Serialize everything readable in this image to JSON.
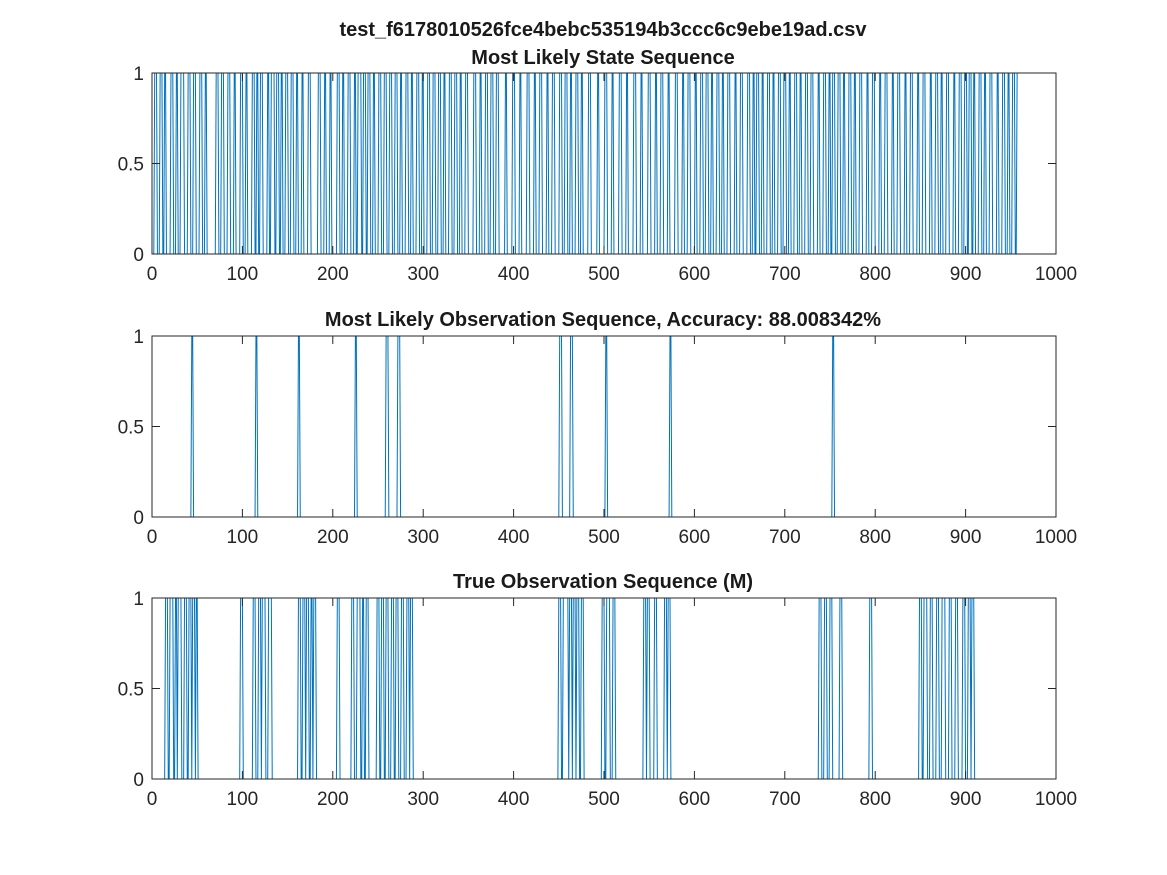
{
  "figure": {
    "suptitle": "test_f6178010526fce4bebc535194b3ccc6c9ebe19ad.csv"
  },
  "colors": {
    "series": "#0072BD",
    "axes": "#262626",
    "background": "#ffffff"
  },
  "chart_data": [
    {
      "type": "line",
      "title": "Most Likely State Sequence",
      "xlabel": "",
      "ylabel": "",
      "xlim": [
        0,
        1000
      ],
      "ylim": [
        0,
        1
      ],
      "xticks": [
        0,
        100,
        200,
        300,
        400,
        500,
        600,
        700,
        800,
        900,
        1000
      ],
      "yticks": [
        0,
        0.5,
        1
      ],
      "xtick_labels": [
        "0",
        "100",
        "200",
        "300",
        "400",
        "500",
        "600",
        "700",
        "800",
        "900",
        "1000"
      ],
      "ytick_labels": [
        "0",
        "0.5",
        "1"
      ],
      "grid": false,
      "series_length": 959,
      "series": [
        {
          "values_encoding": "binary step signal; intervals where value = 1",
          "ones_intervals": [
            [
              2,
              4
            ],
            [
              8,
              10
            ],
            [
              13,
              14
            ],
            [
              20,
              22
            ],
            [
              26,
              27
            ],
            [
              31,
              34
            ],
            [
              39,
              41
            ],
            [
              45,
              47
            ],
            [
              52,
              54
            ],
            [
              58,
              59
            ],
            [
              70,
              72
            ],
            [
              76,
              78
            ],
            [
              83,
              85
            ],
            [
              90,
              91
            ],
            [
              97,
              99
            ],
            [
              103,
              104
            ],
            [
              110,
              112
            ],
            [
              115,
              116
            ],
            [
              119,
              121
            ],
            [
              127,
              128
            ],
            [
              131,
              134
            ],
            [
              137,
              139
            ],
            [
              142,
              143
            ],
            [
              147,
              149
            ],
            [
              153,
              155
            ],
            [
              159,
              160
            ],
            [
              165,
              166
            ],
            [
              172,
              174
            ],
            [
              183,
              185
            ],
            [
              190,
              191
            ],
            [
              196,
              197
            ],
            [
              204,
              206
            ],
            [
              210,
              211
            ],
            [
              216,
              218
            ],
            [
              223,
              224
            ],
            [
              227,
              230
            ],
            [
              233,
              235
            ],
            [
              238,
              240
            ],
            [
              244,
              245
            ],
            [
              250,
              252
            ],
            [
              256,
              258
            ],
            [
              262,
              264
            ],
            [
              268,
              270
            ],
            [
              274,
              275
            ],
            [
              280,
              282
            ],
            [
              286,
              287
            ],
            [
              292,
              294
            ],
            [
              298,
              299
            ],
            [
              304,
              306
            ],
            [
              310,
              312
            ],
            [
              316,
              318
            ],
            [
              322,
              323
            ],
            [
              328,
              330
            ],
            [
              334,
              336
            ],
            [
              340,
              341
            ],
            [
              346,
              348
            ],
            [
              355,
              357
            ],
            [
              362,
              363
            ],
            [
              368,
              370
            ],
            [
              374,
              376
            ],
            [
              380,
              382
            ],
            [
              390,
              391
            ],
            [
              398,
              400
            ],
            [
              406,
              407
            ],
            [
              414,
              416
            ],
            [
              422,
              423
            ],
            [
              428,
              430
            ],
            [
              436,
              437
            ],
            [
              442,
              444
            ],
            [
              450,
              452
            ],
            [
              456,
              458
            ],
            [
              462,
              463
            ],
            [
              468,
              470
            ],
            [
              474,
              475
            ],
            [
              482,
              484
            ],
            [
              492,
              493
            ],
            [
              500,
              502
            ],
            [
              508,
              509
            ],
            [
              516,
              518
            ],
            [
              524,
              525
            ],
            [
              532,
              534
            ],
            [
              540,
              541
            ],
            [
              548,
              550
            ],
            [
              556,
              557
            ],
            [
              562,
              564
            ],
            [
              570,
              571
            ],
            [
              578,
              580
            ],
            [
              586,
              587
            ],
            [
              592,
              594
            ],
            [
              600,
              601
            ],
            [
              606,
              608
            ],
            [
              612,
              614
            ],
            [
              618,
              619
            ],
            [
              624,
              626
            ],
            [
              630,
              631
            ],
            [
              636,
              638
            ],
            [
              644,
              645
            ],
            [
              650,
              652
            ],
            [
              658,
              660
            ],
            [
              664,
              665
            ],
            [
              668,
              670
            ],
            [
              674,
              675
            ],
            [
              680,
              682
            ],
            [
              686,
              687
            ],
            [
              692,
              694
            ],
            [
              698,
              700
            ],
            [
              704,
              705
            ],
            [
              710,
              712
            ],
            [
              716,
              717
            ],
            [
              722,
              724
            ],
            [
              728,
              730
            ],
            [
              736,
              737
            ],
            [
              742,
              744
            ],
            [
              748,
              749
            ],
            [
              752,
              754
            ],
            [
              758,
              760
            ],
            [
              764,
              765
            ],
            [
              770,
              772
            ],
            [
              776,
              777
            ],
            [
              782,
              784
            ],
            [
              790,
              791
            ],
            [
              796,
              798
            ],
            [
              804,
              805
            ],
            [
              810,
              812
            ],
            [
              818,
              819
            ],
            [
              824,
              826
            ],
            [
              832,
              833
            ],
            [
              838,
              840
            ],
            [
              846,
              847
            ],
            [
              852,
              854
            ],
            [
              860,
              861
            ],
            [
              866,
              868
            ],
            [
              872,
              873
            ],
            [
              878,
              880
            ],
            [
              886,
              887
            ],
            [
              892,
              894
            ],
            [
              898,
              900
            ],
            [
              903,
              905
            ],
            [
              908,
              909
            ],
            [
              914,
              916
            ],
            [
              920,
              921
            ],
            [
              926,
              928
            ],
            [
              934,
              935
            ],
            [
              940,
              942
            ],
            [
              946,
              947
            ],
            [
              951,
              953
            ],
            [
              956,
              958
            ]
          ]
        }
      ]
    },
    {
      "type": "line",
      "title": "Most Likely Observation Sequence, Accuracy: 88.008342%",
      "xlabel": "",
      "ylabel": "",
      "xlim": [
        0,
        1000
      ],
      "ylim": [
        0,
        1
      ],
      "xticks": [
        0,
        100,
        200,
        300,
        400,
        500,
        600,
        700,
        800,
        900,
        1000
      ],
      "yticks": [
        0,
        0.5,
        1
      ],
      "xtick_labels": [
        "0",
        "100",
        "200",
        "300",
        "400",
        "500",
        "600",
        "700",
        "800",
        "900",
        "1000"
      ],
      "ytick_labels": [
        "0",
        "0.5",
        "1"
      ],
      "grid": false,
      "series_length": 959,
      "series": [
        {
          "values_encoding": "binary step signal; intervals where value = 1",
          "ones_intervals": [
            [
              43,
              44
            ],
            [
              114,
              115
            ],
            [
              161,
              162
            ],
            [
              224,
              225
            ],
            [
              258,
              260
            ],
            [
              271,
              273
            ],
            [
              450,
              452
            ],
            [
              462,
              464
            ],
            [
              501,
              502
            ],
            [
              572,
              573
            ],
            [
              752,
              753
            ]
          ]
        }
      ]
    },
    {
      "type": "line",
      "title": "True Observation Sequence (M)",
      "xlabel": "",
      "ylabel": "",
      "xlim": [
        0,
        1000
      ],
      "ylim": [
        0,
        1
      ],
      "xticks": [
        0,
        100,
        200,
        300,
        400,
        500,
        600,
        700,
        800,
        900,
        1000
      ],
      "yticks": [
        0,
        0.5,
        1
      ],
      "xtick_labels": [
        "0",
        "100",
        "200",
        "300",
        "400",
        "500",
        "600",
        "700",
        "800",
        "900",
        "1000"
      ],
      "ytick_labels": [
        "0",
        "0.5",
        "1"
      ],
      "grid": false,
      "series_length": 959,
      "series": [
        {
          "values_encoding": "binary step signal; intervals where value = 1",
          "ones_intervals": [
            [
              14,
              16
            ],
            [
              19,
              22
            ],
            [
              25,
              26
            ],
            [
              28,
              31
            ],
            [
              35,
              37
            ],
            [
              40,
              42
            ],
            [
              44,
              46
            ],
            [
              48,
              49
            ],
            [
              97,
              99
            ],
            [
              111,
              113
            ],
            [
              117,
              119
            ],
            [
              121,
              124
            ],
            [
              128,
              131
            ],
            [
              161,
              163
            ],
            [
              166,
              168
            ],
            [
              170,
              172
            ],
            [
              175,
              176
            ],
            [
              178,
              180
            ],
            [
              204,
              206
            ],
            [
              220,
              222
            ],
            [
              226,
              229
            ],
            [
              232,
              233
            ],
            [
              236,
              238
            ],
            [
              248,
              250
            ],
            [
              253,
              255
            ],
            [
              258,
              260
            ],
            [
              264,
              266
            ],
            [
              269,
              271
            ],
            [
              275,
              277
            ],
            [
              281,
              283
            ],
            [
              285,
              287
            ],
            [
              449,
              451
            ],
            [
              454,
              456
            ],
            [
              457,
              459
            ],
            [
              461,
              463
            ],
            [
              465,
              467
            ],
            [
              469,
              471
            ],
            [
              474,
              476
            ],
            [
              497,
              499
            ],
            [
              502,
              505
            ],
            [
              509,
              511
            ],
            [
              543,
              545
            ],
            [
              547,
              549
            ],
            [
              555,
              557
            ],
            [
              566,
              568
            ],
            [
              570,
              572
            ],
            [
              737,
              739
            ],
            [
              743,
              745
            ],
            [
              749,
              751
            ],
            [
              760,
              762
            ],
            [
              793,
              795
            ],
            [
              848,
              850
            ],
            [
              853,
              856
            ],
            [
              860,
              862
            ],
            [
              867,
              869
            ],
            [
              873,
              876
            ],
            [
              881,
              883
            ],
            [
              888,
              890
            ],
            [
              896,
              898
            ],
            [
              902,
              904
            ],
            [
              906,
              908
            ]
          ]
        }
      ]
    }
  ]
}
